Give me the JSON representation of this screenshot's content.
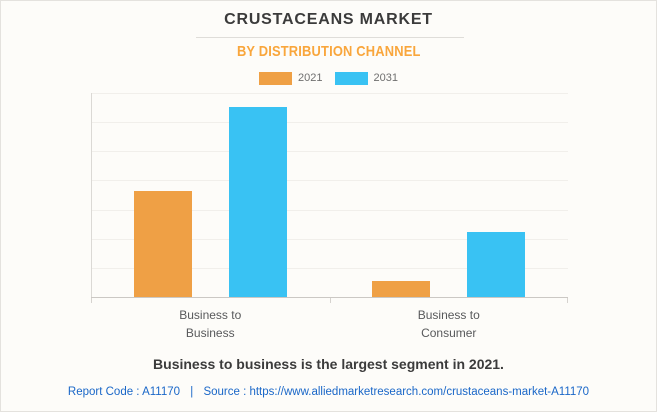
{
  "header": {
    "title": "CRUSTACEANS MARKET",
    "subtitle": "BY DISTRIBUTION CHANNEL"
  },
  "chart_data": {
    "type": "bar",
    "title": "CRUSTACEANS MARKET",
    "subtitle": "BY DISTRIBUTION CHANNEL",
    "categories": [
      "Business to Business",
      "Business to Consumer"
    ],
    "series": [
      {
        "name": "2021",
        "color": "#efa045",
        "values": [
          52,
          8
        ]
      },
      {
        "name": "2031",
        "color": "#39c2f3",
        "values": [
          93,
          32
        ]
      }
    ],
    "xlabel": "",
    "ylabel": "",
    "ylim": [
      0,
      100
    ],
    "y_tick_labels_visible": false,
    "grid": "horizontal",
    "gridline_intervals": 7,
    "legend_position": "top",
    "value_note": "y-axis unlabeled; values estimated as percent of plot height"
  },
  "legend": [
    {
      "label": "2021",
      "color": "#efa045"
    },
    {
      "label": "2031",
      "color": "#39c2f3"
    }
  ],
  "annotation": "Business to business is the largest segment in 2021.",
  "footer": {
    "report_code_label": "Report Code :",
    "report_code": "A11170",
    "separator": "|",
    "source_label": "Source :",
    "source_url": "https://www.alliedmarketresearch.com/crustaceans-market-A11170"
  },
  "colors": {
    "background": "#fdfcf9",
    "title_text": "#3b3b3b",
    "subtitle_text": "#f9a63c",
    "category_text": "#58595b",
    "footer_link": "#1a67c8",
    "series_2021": "#efa045",
    "series_2031": "#39c2f3"
  }
}
